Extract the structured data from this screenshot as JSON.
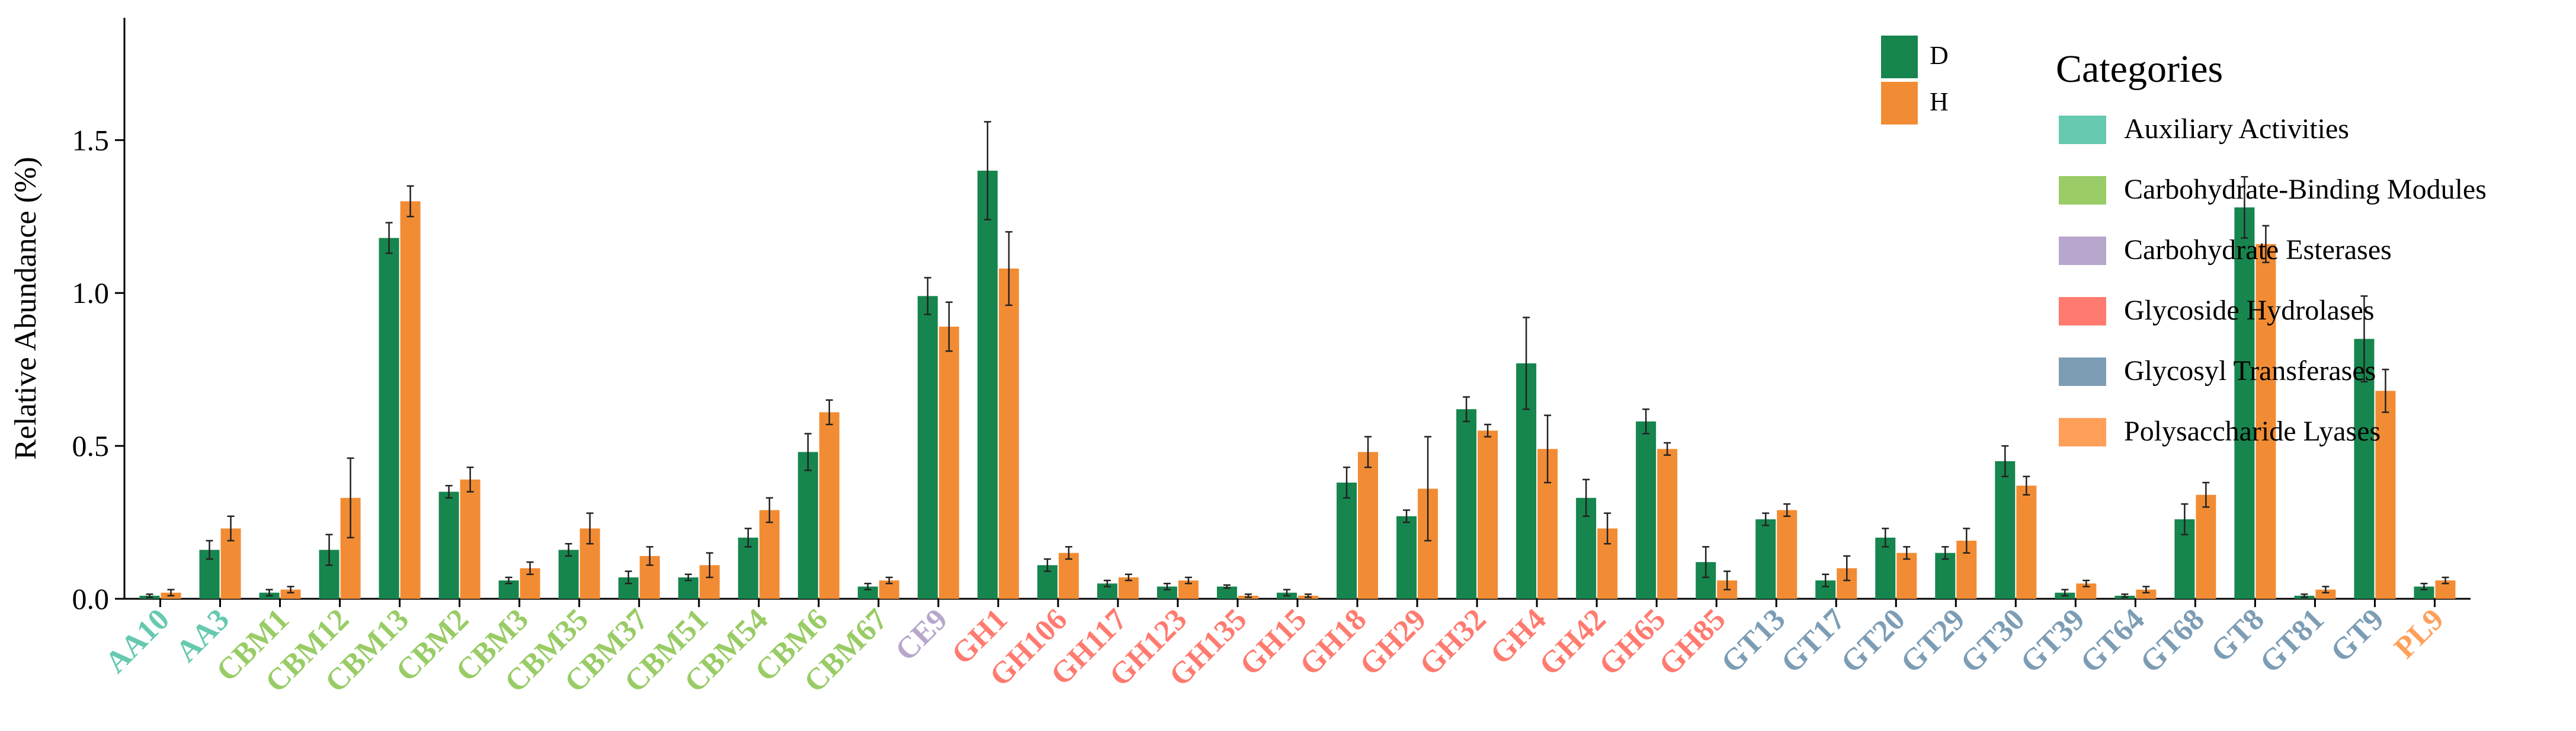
{
  "chart_data": {
    "type": "bar",
    "ylabel": "Relative Abundance (%)",
    "ylim": [
      0,
      1.9
    ],
    "yticks": [
      0.0,
      0.5,
      1.0,
      1.5
    ],
    "categories": [
      "AA10",
      "AA3",
      "CBM1",
      "CBM12",
      "CBM13",
      "CBM2",
      "CBM3",
      "CBM35",
      "CBM37",
      "CBM51",
      "CBM54",
      "CBM6",
      "CBM67",
      "CE9",
      "GH1",
      "GH106",
      "GH117",
      "GH123",
      "GH135",
      "GH15",
      "GH18",
      "GH29",
      "GH32",
      "GH4",
      "GH42",
      "GH65",
      "GH85",
      "GT13",
      "GT17",
      "GT20",
      "GT29",
      "GT30",
      "GT39",
      "GT64",
      "GT68",
      "GT8",
      "GT81",
      "GT9",
      "PL9"
    ],
    "category_groups": [
      "Auxiliary Activities",
      "Auxiliary Activities",
      "Carbohydrate-Binding Modules",
      "Carbohydrate-Binding Modules",
      "Carbohydrate-Binding Modules",
      "Carbohydrate-Binding Modules",
      "Carbohydrate-Binding Modules",
      "Carbohydrate-Binding Modules",
      "Carbohydrate-Binding Modules",
      "Carbohydrate-Binding Modules",
      "Carbohydrate-Binding Modules",
      "Carbohydrate-Binding Modules",
      "Carbohydrate-Binding Modules",
      "Carbohydrate Esterases",
      "Glycoside Hydrolases",
      "Glycoside Hydrolases",
      "Glycoside Hydrolases",
      "Glycoside Hydrolases",
      "Glycoside Hydrolases",
      "Glycoside Hydrolases",
      "Glycoside Hydrolases",
      "Glycoside Hydrolases",
      "Glycoside Hydrolases",
      "Glycoside Hydrolases",
      "Glycoside Hydrolases",
      "Glycoside Hydrolases",
      "Glycoside Hydrolases",
      "Glycosyl Transferases",
      "Glycosyl Transferases",
      "Glycosyl Transferases",
      "Glycosyl Transferases",
      "Glycosyl Transferases",
      "Glycosyl Transferases",
      "Glycosyl Transferases",
      "Glycosyl Transferases",
      "Glycosyl Transferases",
      "Glycosyl Transferases",
      "Glycosyl Transferases",
      "Polysaccharide Lyases"
    ],
    "series": [
      {
        "name": "D",
        "color": "#17854e",
        "values": [
          0.01,
          0.16,
          0.02,
          0.16,
          1.18,
          0.35,
          0.06,
          0.16,
          0.07,
          0.07,
          0.2,
          0.48,
          0.04,
          0.99,
          1.4,
          0.11,
          0.05,
          0.04,
          0.04,
          0.02,
          0.38,
          0.27,
          0.62,
          0.77,
          0.33,
          0.58,
          0.12,
          0.26,
          0.06,
          0.2,
          0.15,
          0.45,
          0.02,
          0.01,
          0.26,
          1.28,
          0.01,
          0.85,
          0.04
        ],
        "errors": [
          0.005,
          0.03,
          0.01,
          0.05,
          0.05,
          0.02,
          0.01,
          0.02,
          0.02,
          0.01,
          0.03,
          0.06,
          0.01,
          0.06,
          0.16,
          0.02,
          0.01,
          0.01,
          0.005,
          0.01,
          0.05,
          0.02,
          0.04,
          0.15,
          0.06,
          0.04,
          0.05,
          0.02,
          0.02,
          0.03,
          0.02,
          0.05,
          0.01,
          0.005,
          0.05,
          0.1,
          0.005,
          0.14,
          0.01
        ]
      },
      {
        "name": "H",
        "color": "#f28c34",
        "values": [
          0.02,
          0.23,
          0.03,
          0.33,
          1.3,
          0.39,
          0.1,
          0.23,
          0.14,
          0.11,
          0.29,
          0.61,
          0.06,
          0.89,
          1.08,
          0.15,
          0.07,
          0.06,
          0.01,
          0.01,
          0.48,
          0.36,
          0.55,
          0.49,
          0.23,
          0.49,
          0.06,
          0.29,
          0.1,
          0.15,
          0.19,
          0.37,
          0.05,
          0.03,
          0.34,
          1.16,
          0.03,
          0.68,
          0.06
        ],
        "errors": [
          0.01,
          0.04,
          0.01,
          0.13,
          0.05,
          0.04,
          0.02,
          0.05,
          0.03,
          0.04,
          0.04,
          0.04,
          0.01,
          0.08,
          0.12,
          0.02,
          0.01,
          0.01,
          0.005,
          0.005,
          0.05,
          0.17,
          0.02,
          0.11,
          0.05,
          0.02,
          0.03,
          0.02,
          0.04,
          0.02,
          0.04,
          0.03,
          0.01,
          0.01,
          0.04,
          0.06,
          0.01,
          0.07,
          0.01
        ]
      }
    ],
    "legend_placement": "top-right inside plot",
    "categories_legend": {
      "title": "Categories",
      "items": [
        {
          "label": "Auxiliary Activities",
          "color": "#66c9b0"
        },
        {
          "label": "Carbohydrate-Binding Modules",
          "color": "#99cc66"
        },
        {
          "label": "Carbohydrate Esterases",
          "color": "#b8a7cc"
        },
        {
          "label": "Glycoside Hydrolases",
          "color": "#ff7b70"
        },
        {
          "label": "Glycosyl Transferases",
          "color": "#7d9db5"
        },
        {
          "label": "Polysaccharide Lyases",
          "color": "#ffa05a"
        }
      ]
    },
    "grid": false
  }
}
